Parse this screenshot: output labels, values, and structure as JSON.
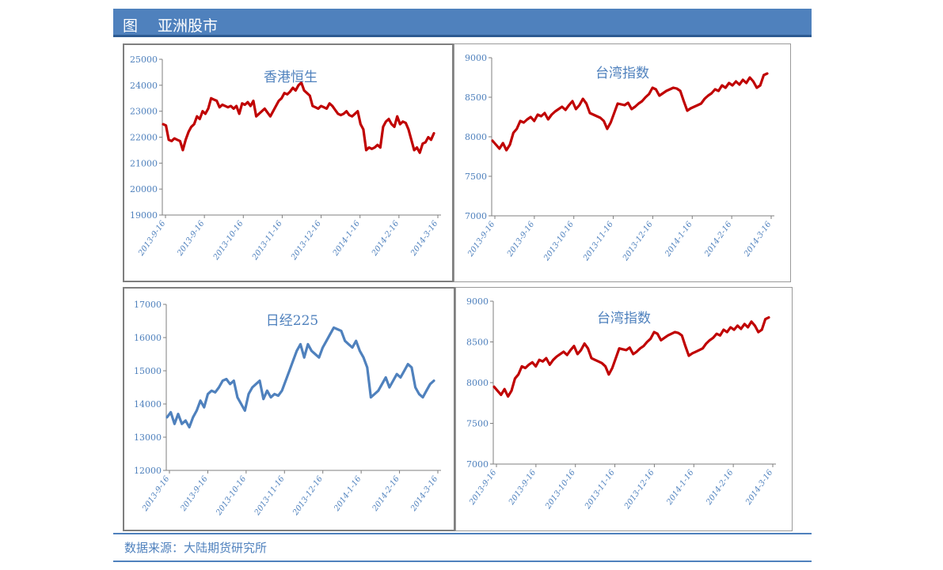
{
  "header": {
    "figure_label": "图",
    "title": "亚洲股市"
  },
  "source": "数据来源：大陆期货研究所",
  "colors": {
    "header_bg": "#4f81bd",
    "red_line": "#c00000",
    "blue_line": "#4f81bd",
    "axis_text": "#4f81bd"
  },
  "chart_data": [
    {
      "id": "hsi",
      "type": "line",
      "title": "香港恒生",
      "color": "#c00000",
      "y_ticks": [
        19000,
        20000,
        21000,
        22000,
        23000,
        24000,
        25000
      ],
      "x_ticks": [
        "2013-9-16",
        "2013-9-16",
        "2013-10-16",
        "2013-11-16",
        "2013-12-16",
        "2014-1-16",
        "2014-2-16",
        "2014-3-16"
      ],
      "ylim": [
        19000,
        25000
      ],
      "values": [
        22500,
        22450,
        21900,
        21850,
        21950,
        21900,
        21850,
        21500,
        21900,
        22200,
        22400,
        22500,
        22800,
        22700,
        23000,
        22900,
        23100,
        23500,
        23450,
        23400,
        23150,
        23250,
        23200,
        23150,
        23200,
        23100,
        23200,
        22900,
        23300,
        23250,
        23350,
        23200,
        23400,
        22800,
        22900,
        23000,
        23100,
        22950,
        22800,
        23000,
        23200,
        23400,
        23500,
        23700,
        23650,
        23750,
        23900,
        23800,
        24000,
        24100,
        23800,
        23700,
        23600,
        23200,
        23150,
        23100,
        23200,
        23150,
        23100,
        23300,
        23200,
        23050,
        22900,
        22850,
        22900,
        23000,
        22850,
        22800,
        22900,
        23000,
        22500,
        22300,
        21500,
        21600,
        21550,
        21600,
        21700,
        21600,
        22400,
        22600,
        22700,
        22500,
        22400,
        22800,
        22500,
        22600,
        22550,
        22300,
        21900,
        21500,
        21600,
        21400,
        21750,
        21800,
        22000,
        21900,
        22150
      ]
    },
    {
      "id": "twii_top",
      "type": "line",
      "title": "台湾指数",
      "color": "#c00000",
      "y_ticks": [
        7000,
        7500,
        8000,
        8500,
        9000
      ],
      "x_ticks": [
        "2013-9-16",
        "2013-9-16",
        "2013-10-16",
        "2013-11-16",
        "2013-12-16",
        "2014-1-16",
        "2014-2-16",
        "2014-3-16"
      ],
      "ylim": [
        7000,
        9000
      ],
      "values": [
        7950,
        7900,
        7850,
        7920,
        7830,
        7900,
        8050,
        8100,
        8200,
        8180,
        8220,
        8250,
        8200,
        8280,
        8260,
        8300,
        8220,
        8280,
        8320,
        8350,
        8380,
        8340,
        8400,
        8450,
        8350,
        8400,
        8480,
        8420,
        8300,
        8280,
        8260,
        8240,
        8200,
        8100,
        8180,
        8300,
        8420,
        8410,
        8400,
        8430,
        8350,
        8380,
        8420,
        8450,
        8500,
        8540,
        8620,
        8600,
        8520,
        8550,
        8580,
        8600,
        8620,
        8610,
        8580,
        8450,
        8330,
        8360,
        8380,
        8400,
        8420,
        8480,
        8520,
        8550,
        8600,
        8580,
        8650,
        8620,
        8680,
        8650,
        8700,
        8660,
        8720,
        8680,
        8750,
        8700,
        8620,
        8650,
        8780,
        8800
      ]
    },
    {
      "id": "n225",
      "type": "line",
      "title": "日经225",
      "color": "#4f81bd",
      "y_ticks": [
        12000,
        13000,
        14000,
        15000,
        16000,
        17000
      ],
      "x_ticks": [
        "2013-9-16",
        "2013-9-16",
        "2013-10-16",
        "2013-11-16",
        "2013-12-16",
        "2014-1-16",
        "2014-2-16",
        "2014-3-16"
      ],
      "ylim": [
        12000,
        17000
      ],
      "values": [
        13600,
        13750,
        13400,
        13700,
        13400,
        13500,
        13300,
        13600,
        13800,
        14100,
        13900,
        14300,
        14400,
        14350,
        14500,
        14700,
        14750,
        14600,
        14700,
        14200,
        14000,
        13800,
        14300,
        14500,
        14600,
        14700,
        14150,
        14400,
        14200,
        14300,
        14250,
        14400,
        14700,
        15000,
        15300,
        15600,
        15800,
        15400,
        15800,
        15600,
        15500,
        15400,
        15700,
        15900,
        16100,
        16300,
        16250,
        16200,
        15900,
        15800,
        15700,
        15900,
        15600,
        15400,
        15100,
        14200,
        14300,
        14400,
        14600,
        14800,
        14500,
        14700,
        14900,
        14800,
        15000,
        15200,
        15100,
        14500,
        14300,
        14200,
        14400,
        14600,
        14700
      ]
    },
    {
      "id": "twii_bottom",
      "type": "line",
      "title": "台湾指数",
      "color": "#c00000",
      "y_ticks": [
        7000,
        7500,
        8000,
        8500,
        9000
      ],
      "x_ticks": [
        "2013-9-16",
        "2013-9-16",
        "2013-10-16",
        "2013-11-16",
        "2013-12-16",
        "2014-1-16",
        "2014-2-16",
        "2014-3-16"
      ],
      "ylim": [
        7000,
        9000
      ],
      "values": [
        7950,
        7900,
        7850,
        7920,
        7830,
        7900,
        8050,
        8100,
        8200,
        8180,
        8220,
        8250,
        8200,
        8280,
        8260,
        8300,
        8220,
        8280,
        8320,
        8350,
        8380,
        8340,
        8400,
        8450,
        8350,
        8400,
        8480,
        8420,
        8300,
        8280,
        8260,
        8240,
        8200,
        8100,
        8180,
        8300,
        8420,
        8410,
        8400,
        8430,
        8350,
        8380,
        8420,
        8450,
        8500,
        8540,
        8620,
        8600,
        8520,
        8550,
        8580,
        8600,
        8620,
        8610,
        8580,
        8450,
        8330,
        8360,
        8380,
        8400,
        8420,
        8480,
        8520,
        8550,
        8600,
        8580,
        8650,
        8620,
        8680,
        8650,
        8700,
        8660,
        8720,
        8680,
        8750,
        8700,
        8620,
        8650,
        8780,
        8800
      ]
    }
  ]
}
